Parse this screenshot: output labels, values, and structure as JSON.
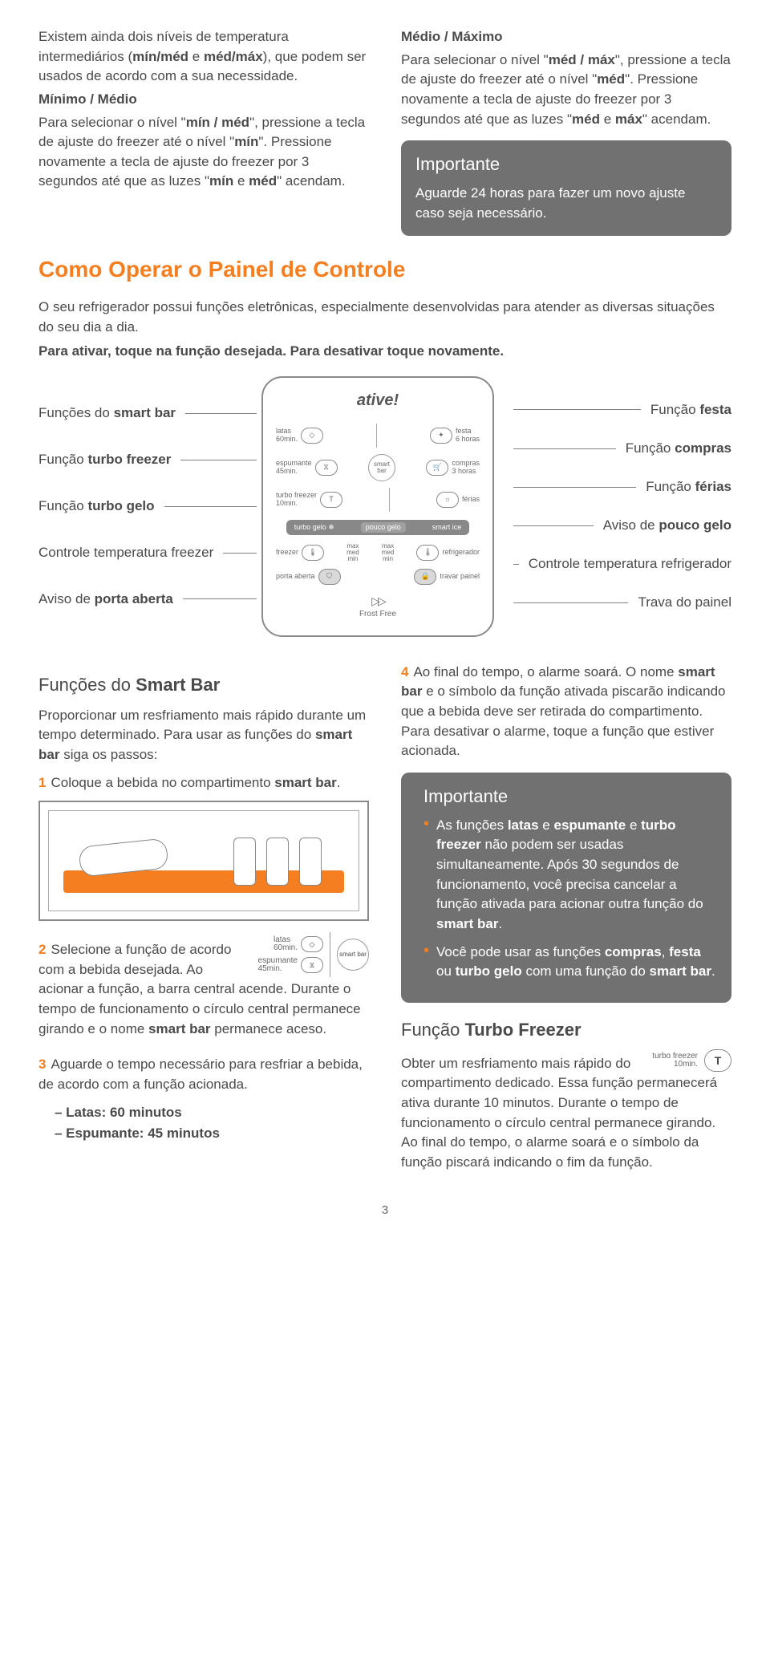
{
  "intro": {
    "p1_a": "Existem ainda dois níveis de temperatura intermediários (",
    "p1_b": "mín/méd",
    "p1_c": " e ",
    "p1_d": "méd/máx",
    "p1_e": "), que podem ser usados de acordo com a sua necessidade.",
    "min_title": "Mínimo / Médio",
    "min_a": "Para selecionar o nível \"",
    "min_b": "mín / méd",
    "min_c": "\", pressione a tecla de ajuste do freezer até o nível \"",
    "min_d": "mín",
    "min_e": "\". Pressione novamente a tecla de ajuste do freezer por 3 segundos até que as luzes \"",
    "min_f": "mín",
    "min_g": " e ",
    "min_h": "méd",
    "min_i": "\" acendam.",
    "max_title": "Médio / Máximo",
    "max_a": "Para selecionar o nível \"",
    "max_b": "méd / máx",
    "max_c": "\", pressione a tecla de ajuste do freezer até o nível \"",
    "max_d": "méd",
    "max_e": "\". Pressione novamente a tecla de ajuste do freezer por 3 segundos até que as luzes \"",
    "max_f": "méd",
    "max_g": " e ",
    "max_h": "máx",
    "max_i": "\" acendam.",
    "callout1_title": "Importante",
    "callout1_body": "Aguarde 24 horas para fazer um novo ajuste caso seja necessário."
  },
  "section1_title": "Como Operar o Painel de Controle",
  "section1_p1": "O seu refrigerador possui funções eletrônicas, especialmente desenvolvidas para atender as diversas situações do seu dia a dia.",
  "section1_p2": "Para ativar, toque na função desejada. Para desativar toque novamente.",
  "panel_labels": {
    "left": [
      "Funções do <b>smart bar</b>",
      "Função <b>turbo freezer</b>",
      "Função <b>turbo gelo</b>",
      "Controle temperatura freezer",
      "Aviso de <b>porta aberta</b>"
    ],
    "right": [
      "Função <b>festa</b>",
      "Função <b>compras</b>",
      "Função <b>férias</b>",
      "Aviso de <b>pouco gelo</b>",
      "Controle temperatura refrigerador",
      "Trava do painel"
    ]
  },
  "panel": {
    "brand": "ative!",
    "latas": "latas",
    "latas_t": "60min.",
    "festa": "festa",
    "festa_t": "6 horas",
    "espumante": "espumante",
    "espumante_t": "45min.",
    "smartbar": "smart bar",
    "compras": "compras",
    "compras_t": "3 horas",
    "turbofreezer": "turbo freezer",
    "turbofreezer_t": "10min.",
    "ferias": "férias",
    "turbogelo": "turbo gelo",
    "poucogelo": "pouco gelo",
    "smartice": "smart ice",
    "freezer": "freezer",
    "refrig": "refrigerador",
    "max": "max",
    "med": "med",
    "min": "min",
    "porta": "porta aberta",
    "travar": "travar painel",
    "frost": "Frost Free"
  },
  "smartbar": {
    "title_a": "Funções do ",
    "title_b": "Smart Bar",
    "intro_a": "Proporcionar um resfriamento mais rápido durante um tempo determinado. Para usar as funções do ",
    "intro_b": "smart bar",
    "intro_c": " siga os passos:",
    "s1_a": "Coloque a bebida no compartimento ",
    "s1_b": "smart bar",
    "s1_c": ".",
    "s2_a": "Selecione a função de acordo com a bebida desejada. Ao acionar a função, a barra central acende. Durante o tempo de funcionamento o círculo central permanece girando e o nome ",
    "s2_b": "smart bar",
    "s2_c": " permanece aceso.",
    "s3": "Aguarde o tempo necessário para resfriar a bebida, de acordo com a função acionada.",
    "t_latas": "– Latas: 60 minutos",
    "t_esp": "– Espumante: 45 minutos",
    "s4_a": "Ao final do tempo, o alarme soará. O nome ",
    "s4_b": "smart bar",
    "s4_c": " e o símbolo da função ativada piscarão indicando que a bebida deve ser retirada do compartimento. Para desativar o alarme, toque a função que estiver acionada.",
    "callout_title": "Importante",
    "c_li1_a": "As funções ",
    "c_li1_b": "latas",
    "c_li1_c": " e ",
    "c_li1_d": "espumante",
    "c_li1_e": " e ",
    "c_li1_f": "turbo freezer",
    "c_li1_g": " não podem ser usadas simultaneamente. Após 30 segundos de funcionamento, você precisa cancelar a função ativada para acionar outra função do ",
    "c_li1_h": "smart bar",
    "c_li1_i": ".",
    "c_li2_a": "Você pode usar as funções ",
    "c_li2_b": "compras",
    "c_li2_c": ", ",
    "c_li2_d": "festa",
    "c_li2_e": " ou ",
    "c_li2_f": "turbo gelo",
    "c_li2_g": " com uma função do ",
    "c_li2_h": "smart bar",
    "c_li2_i": "."
  },
  "turbo": {
    "title_a": "Função ",
    "title_b": "Turbo Freezer",
    "body": "Obter um resfriamento mais rápido do compartimento dedicado. Essa função permanecerá ativa durante 10 minutos. Durante o tempo de funcionamento o círculo central permanece girando. Ao final do tempo, o alarme soará e o símbolo da função piscará indicando o fim da função.",
    "icon_lbl": "turbo freezer",
    "icon_t": "10min."
  },
  "pagenum": "3"
}
